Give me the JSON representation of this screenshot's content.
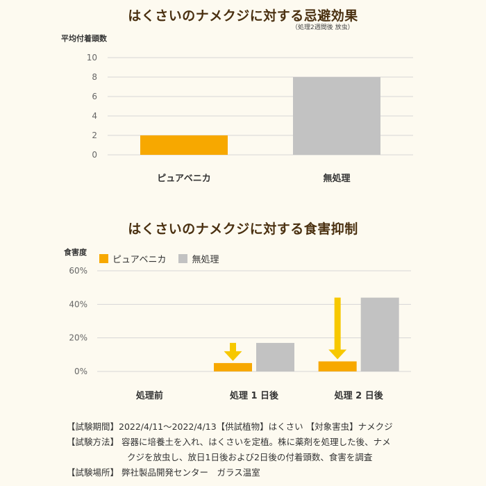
{
  "chart_data": [
    {
      "type": "bar",
      "title": "はくさいのナメクジに対する忌避効果",
      "subtitle": "（処理2週間後 放虫）",
      "ylabel": "平均付着頭数",
      "xlabel": "",
      "categories": [
        "ピュアベニカ",
        "無処理"
      ],
      "values": [
        2,
        8
      ],
      "colors": [
        "#f7a800",
        "#c2c2c2"
      ],
      "ylim": [
        0,
        10
      ],
      "yticks": [
        "0",
        "2",
        "4",
        "6",
        "8",
        "10"
      ],
      "grid": true,
      "legend": "none"
    },
    {
      "type": "bar",
      "title": "はくさいのナメクジに対する食害抑制",
      "ylabel": "食害度",
      "xlabel": "",
      "categories": [
        "処理前",
        "処理 1 日後",
        "処理 2 日後"
      ],
      "series": [
        {
          "name": "ピュアベニカ",
          "values": [
            0,
            5,
            6
          ],
          "color": "#f7a800"
        },
        {
          "name": "無処理",
          "values": [
            0,
            17,
            44
          ],
          "color": "#c2c2c2"
        }
      ],
      "ylim": [
        0,
        60
      ],
      "yticks": [
        "0%",
        "20%",
        "40%",
        "60%"
      ],
      "grid": true,
      "legend": "top-left",
      "annotations": [
        {
          "type": "arrow-down",
          "category": "処理 1 日後",
          "from": 17,
          "to": 5,
          "color": "#f7c800"
        },
        {
          "type": "arrow-down",
          "category": "処理 2 日後",
          "from": 44,
          "to": 6,
          "color": "#f7c800"
        }
      ]
    }
  ],
  "notes": {
    "line1": "【試験期間】2022/4/11～2022/4/13【供試植物】はくさい 【対象害虫】ナメクジ",
    "line2": "【試験方法】 容器に培養土を入れ、はくさいを定植。株に薬剤を処理した後、ナメ",
    "line3": "クジを放虫し、放日1日後および2日後の付着頭数、食害を調査",
    "line4": "【試験場所】 弊社製品開発センター　ガラス温室"
  }
}
